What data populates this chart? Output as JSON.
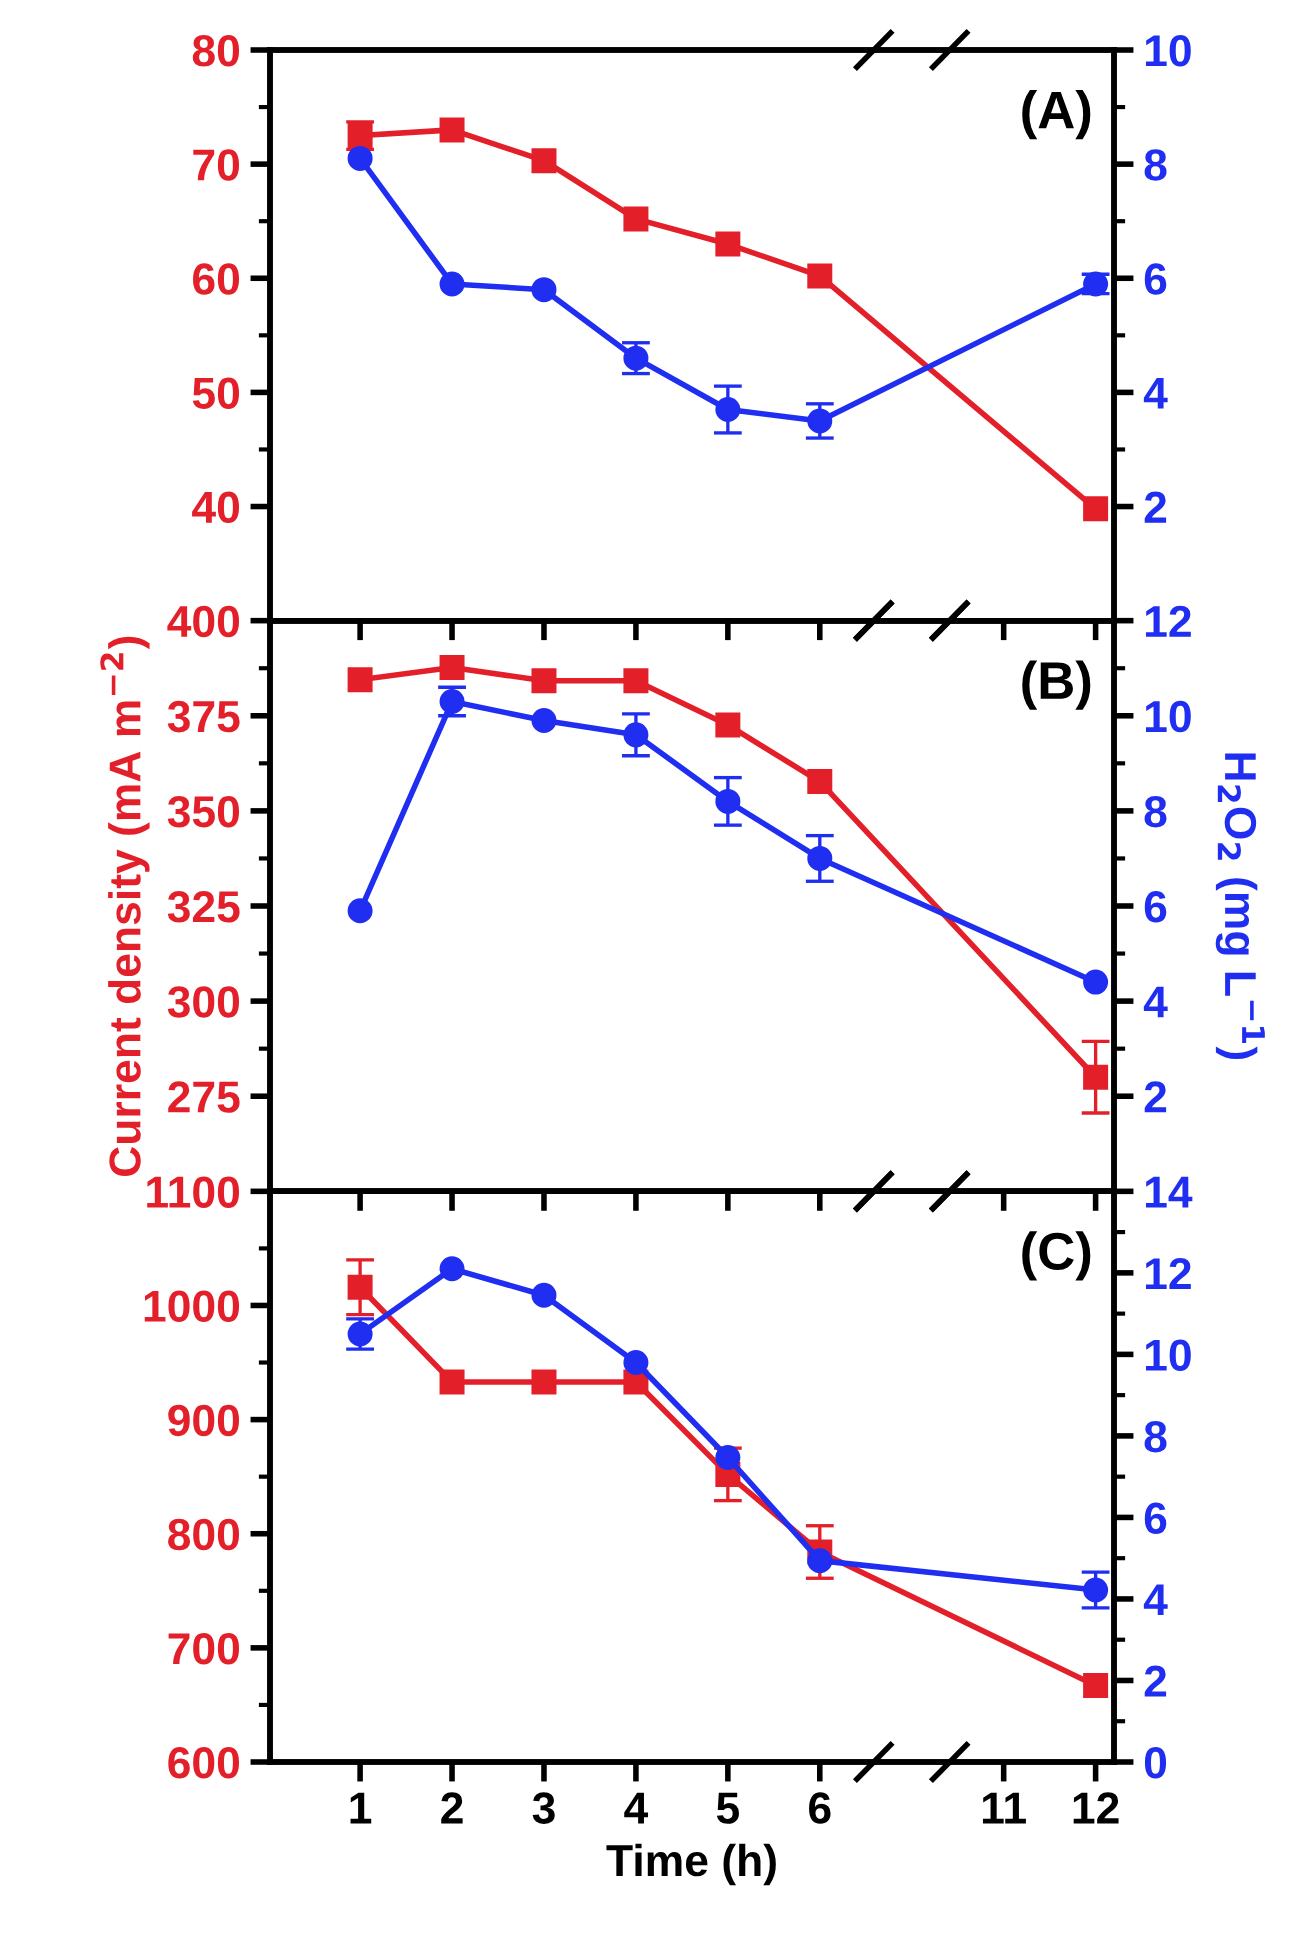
{
  "chart_data": [
    {
      "type": "line",
      "categories": [
        "1",
        "2",
        "3",
        "4",
        "5",
        "6",
        null,
        "11",
        "12"
      ],
      "ylim": [
        30,
        80
      ],
      "yticks": [
        40,
        50,
        60,
        70,
        80
      ],
      "y2lim": [
        0,
        10
      ],
      "y2ticks": [
        2,
        4,
        6,
        8,
        10
      ],
      "tick_labels": "y",
      "annotations": [
        "(A)"
      ],
      "series": [
        {
          "color": "#e3202a",
          "marker": "square",
          "values": [
            72.5,
            73.0,
            70.3,
            65.2,
            63.0,
            60.2,
            null,
            null,
            39.8
          ],
          "errors": [
            1.2,
            null,
            null,
            null,
            null,
            null,
            null,
            null,
            null
          ]
        },
        {
          "color": "#1f2ef0",
          "marker": "circle",
          "axis": "y2",
          "values": [
            8.1,
            5.9,
            5.8,
            4.6,
            3.7,
            3.5,
            null,
            null,
            5.9
          ],
          "errors": [
            null,
            null,
            null,
            0.27,
            0.41,
            0.3,
            null,
            null,
            0.17
          ]
        }
      ]
    },
    {
      "type": "line",
      "categories": [
        "1",
        "2",
        "3",
        "4",
        "5",
        "6",
        null,
        "11",
        "12"
      ],
      "ylim": [
        250,
        400
      ],
      "yticks": [
        275,
        300,
        325,
        350,
        375,
        400
      ],
      "y2lim": [
        0,
        12
      ],
      "y2ticks": [
        2,
        4,
        6,
        8,
        10,
        12
      ],
      "tick_labels": "y",
      "ylabel": "Current density (mA m$^{−2}$)",
      "y2label": "H$_{2}$O$_{2}$ (mg L$^{−1}$)",
      "annotations": [
        "(B)"
      ],
      "series": [
        {
          "color": "#e3202a",
          "marker": "square",
          "values": [
            384.5,
            387.7,
            384.2,
            384.2,
            372.6,
            357.7,
            null,
            null,
            280.0
          ],
          "errors": [
            null,
            null,
            null,
            null,
            null,
            null,
            null,
            null,
            9.4
          ]
        },
        {
          "color": "#1f2ef0",
          "marker": "circle",
          "axis": "y2",
          "values": [
            5.9,
            10.3,
            9.9,
            9.6,
            8.2,
            7.0,
            null,
            null,
            4.4
          ],
          "errors": [
            null,
            0.3,
            null,
            0.44,
            0.5,
            0.48,
            null,
            null,
            null
          ]
        }
      ]
    },
    {
      "type": "line",
      "categories": [
        "1",
        "2",
        "3",
        "4",
        "5",
        "6",
        null,
        "11",
        "12"
      ],
      "ylim": [
        600,
        1100
      ],
      "yticks": [
        600,
        700,
        800,
        900,
        1000,
        1100
      ],
      "y2lim": [
        0,
        14
      ],
      "y2ticks": [
        0,
        2,
        4,
        6,
        8,
        10,
        12,
        14
      ],
      "xlabel": "Time (h)",
      "annotations": [
        "(C)"
      ],
      "series": [
        {
          "color": "#e3202a",
          "marker": "square",
          "values": [
            1016,
            933,
            933,
            933,
            852,
            784,
            null,
            null,
            667
          ],
          "errors": [
            24,
            null,
            null,
            null,
            23,
            23,
            null,
            null,
            null
          ]
        },
        {
          "color": "#1f2ef0",
          "marker": "circle",
          "axis": "y2",
          "values": [
            10.5,
            12.1,
            11.45,
            9.8,
            7.47,
            4.94,
            null,
            null,
            4.22
          ],
          "errors": [
            0.37,
            null,
            null,
            null,
            null,
            null,
            null,
            null,
            0.44
          ]
        }
      ]
    }
  ]
}
